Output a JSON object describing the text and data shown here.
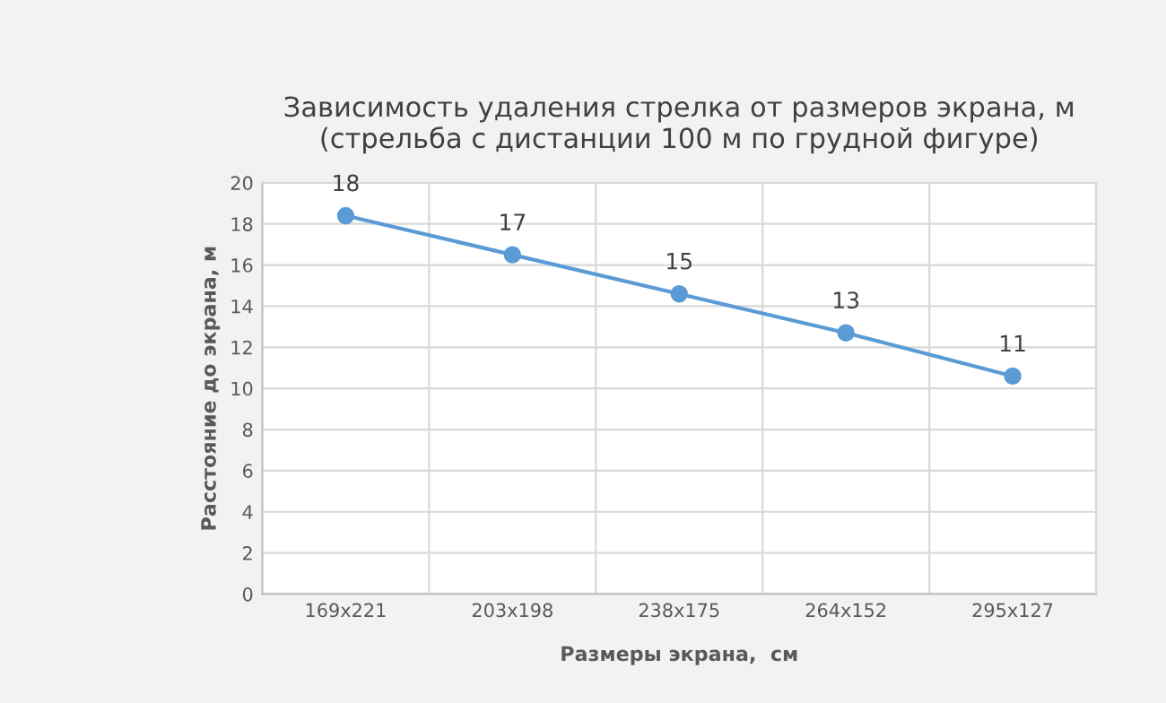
{
  "chart_data": {
    "type": "line",
    "title": "Зависимость удаления стрелка от размеров экрана, м\n(стрельба с дистанции 100 м по грудной фигуре)",
    "xlabel": "Размеры экрана,  см",
    "ylabel": "Расстояние до экрана, м",
    "categories": [
      "169x221",
      "203x198",
      "238x175",
      "264x152",
      "295x127"
    ],
    "series": [
      {
        "color": "#5b9bd5",
        "values": [
          18.4,
          16.5,
          14.6,
          12.7,
          10.6
        ],
        "value_labels": [
          "18",
          "17",
          "15",
          "13",
          "11"
        ]
      }
    ],
    "ylim": [
      0,
      20
    ],
    "yticks": [
      0,
      2,
      4,
      6,
      8,
      10,
      12,
      14,
      16,
      18,
      20
    ],
    "grid": true,
    "marker": "circle",
    "line_style": "solid",
    "legend": false
  }
}
